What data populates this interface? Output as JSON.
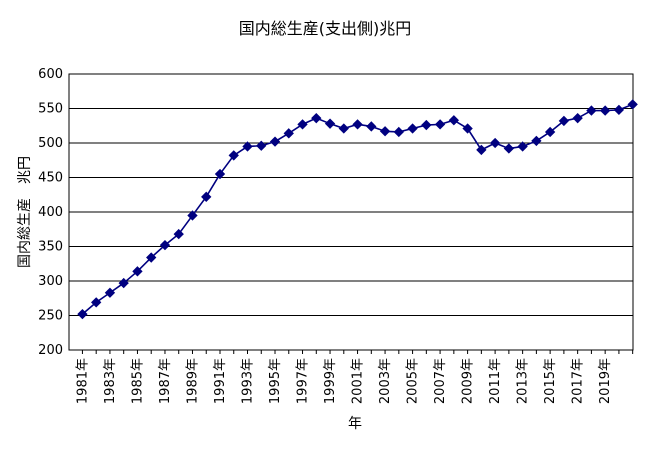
{
  "chart_data": {
    "type": "line",
    "title": "国内総生産(支出側)兆円",
    "xlabel": "年",
    "ylabel": "国内総生産　兆円",
    "x_tick_labels": [
      "1981年",
      "1983年",
      "1985年",
      "1987年",
      "1989年",
      "1991年",
      "1993年",
      "1995年",
      "1997年",
      "1999年",
      "2001年",
      "2003年",
      "2005年",
      "2007年",
      "2009年",
      "2011年",
      "2013年",
      "2015年",
      "2017年",
      "2019年"
    ],
    "y_ticks": [
      200,
      250,
      300,
      350,
      400,
      450,
      500,
      550,
      600
    ],
    "ylim": [
      200,
      600
    ],
    "grid": {
      "y": true,
      "x": false
    },
    "legend": "none",
    "colors": {
      "series": "#000080",
      "grid": "#000000",
      "axis": "#000000",
      "background": "#ffffff"
    },
    "x": [
      1981,
      1982,
      1983,
      1984,
      1985,
      1986,
      1987,
      1988,
      1989,
      1990,
      1991,
      1992,
      1993,
      1994,
      1995,
      1996,
      1997,
      1998,
      1999,
      2000,
      2001,
      2002,
      2003,
      2004,
      2005,
      2006,
      2007,
      2008,
      2009,
      2010,
      2011,
      2012,
      2013,
      2014,
      2015,
      2016,
      2017,
      2018,
      2019,
      2020,
      2021
    ],
    "series": [
      {
        "values": [
          252,
          269,
          283,
          297,
          314,
          334,
          352,
          368,
          395,
          422,
          455,
          482,
          495,
          496,
          502,
          514,
          527,
          536,
          528,
          521,
          527,
          524,
          517,
          516,
          521,
          526,
          527,
          533,
          521,
          490,
          500,
          492,
          495,
          503,
          516,
          532,
          536,
          547,
          547,
          548,
          556
        ]
      }
    ]
  }
}
